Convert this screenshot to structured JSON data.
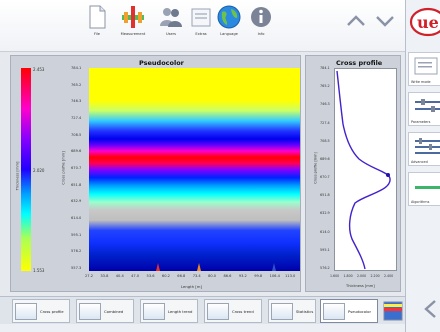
{
  "toolbar": {
    "buttons": [
      {
        "label": "File",
        "icon": "file-icon"
      },
      {
        "label": "Measurement",
        "icon": "measurement-icon"
      },
      {
        "label": "Users",
        "icon": "users-icon"
      },
      {
        "label": "Extras",
        "icon": "extras-icon"
      },
      {
        "label": "Language",
        "icon": "globe-icon"
      },
      {
        "label": "Info",
        "icon": "info-icon"
      }
    ]
  },
  "right_panel": {
    "logo_text": "ue",
    "items": [
      {
        "label": "Write mode"
      },
      {
        "label": "Parameters"
      },
      {
        "label": "Advanced"
      },
      {
        "label": "Algorithms"
      }
    ]
  },
  "pseudocolor": {
    "title": "Pseudocolor",
    "scale_max": "2.453",
    "scale_mid": "2.020",
    "scale_min": "1.553",
    "scale_axis_label": "Thickness [mm]",
    "y_axis_label": "Cross profile [mm]",
    "x_axis_label": "Length [m]",
    "y_ticks": [
      "784.1",
      "765.2",
      "746.3",
      "727.4",
      "708.5",
      "689.6",
      "670.7",
      "651.8",
      "632.9",
      "614.0",
      "595.1",
      "576.2",
      "557.3"
    ],
    "x_ticks": [
      "27.2",
      "33.8",
      "40.4",
      "47.0",
      "53.6",
      "60.2",
      "66.8",
      "73.4",
      "80.0",
      "86.6",
      "93.2",
      "99.8",
      "106.4",
      "113.0"
    ]
  },
  "cross_profile": {
    "title": "Cross profile",
    "x_axis_label": "Thickness [mm]",
    "y_axis_label": "Cross profile [mm]",
    "y_ticks": [
      "784.1",
      "765.2",
      "746.3",
      "727.4",
      "708.5",
      "689.6",
      "670.7",
      "651.8",
      "632.9",
      "614.0",
      "595.1",
      "576.2"
    ],
    "x_ticks": [
      "1.600",
      "1.800",
      "2.000",
      "2.200",
      "2.400"
    ]
  },
  "tabs": [
    {
      "label": "Cross profile",
      "active": false
    },
    {
      "label": "Combined",
      "active": false
    },
    {
      "label": "Length trend",
      "active": false
    },
    {
      "label": "Cross trend",
      "active": false
    },
    {
      "label": "Statistics",
      "active": false
    },
    {
      "label": "Pseudocolor",
      "active": true
    }
  ],
  "colors": {
    "accent_red": "#d0202a",
    "profile_line": "#4422cc",
    "nav_arrow": "#8a93a6"
  }
}
